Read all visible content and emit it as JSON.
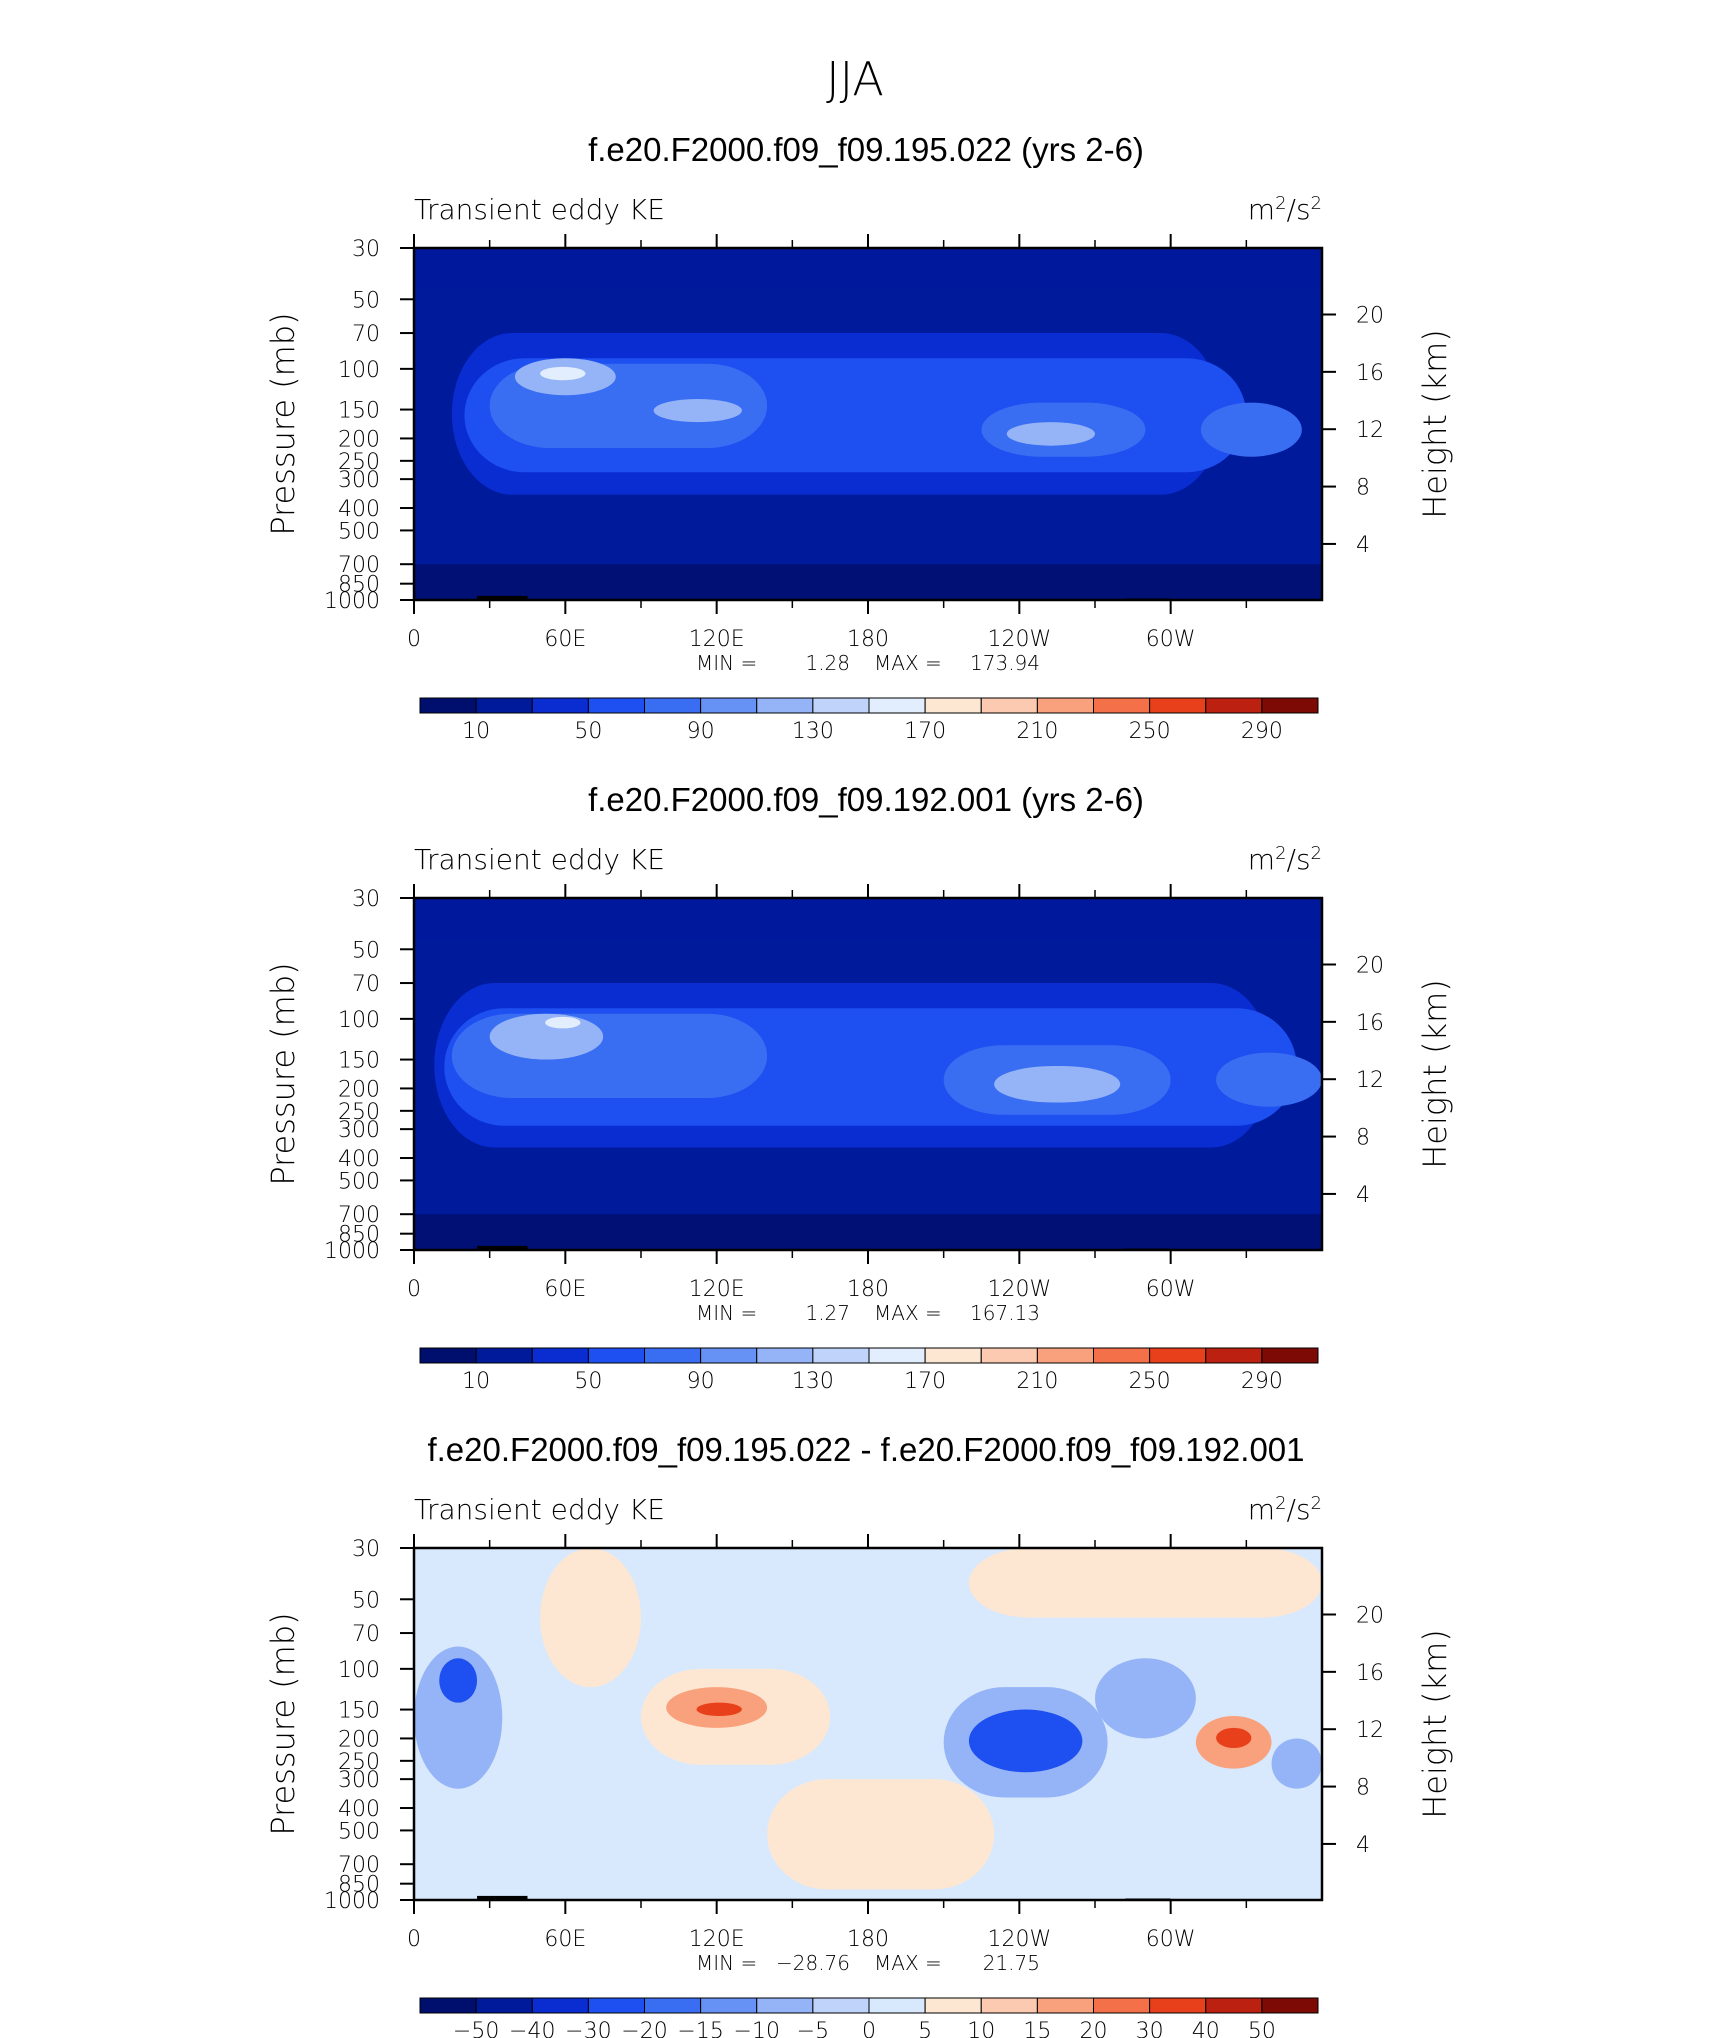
{
  "page": {
    "title": "JJA"
  },
  "colors": {
    "abs_palette": [
      "#000f6e",
      "#001a9c",
      "#0a2dd2",
      "#1e4ff0",
      "#3a6ef2",
      "#6792f5",
      "#95b4f7",
      "#c0d4fb",
      "#e2eefd",
      "#fde7d2",
      "#fccab0",
      "#f9a07c",
      "#f47048",
      "#e8401a",
      "#bb2010",
      "#7d0a05"
    ],
    "diff_palette": [
      "#000f6e",
      "#001a9c",
      "#0a2dd2",
      "#1e4ff0",
      "#3a6ef2",
      "#6792f5",
      "#95b4f7",
      "#c0d4fb",
      "#d8e8fd",
      "#fde7d2",
      "#fccab0",
      "#f9a07c",
      "#f47048",
      "#e8401a",
      "#bb2010",
      "#7d0a05"
    ],
    "topography": "#000000"
  },
  "chart_data": [
    {
      "type": "heatmap",
      "title": "f.e20.F2000.f09_f09.195.022 (yrs 2-6)",
      "left_string": "Transient eddy KE",
      "units_base": "m",
      "units_exp": "2",
      "units_sep": "/s",
      "units_exp2": "2",
      "ylabel": "Pressure (mb)",
      "ylabel_right": "Height (km)",
      "x_ticks": [
        "0",
        "60E",
        "120E",
        "180",
        "120W",
        "60W"
      ],
      "y_ticks": [
        "30",
        "50",
        "70",
        "100",
        "150",
        "200",
        "250",
        "300",
        "400",
        "500",
        "700",
        "850",
        "1000"
      ],
      "y_right_ticks": [
        "20",
        "16",
        "12",
        "8",
        "4"
      ],
      "ylim": [
        1000,
        30
      ],
      "min_label": "MIN =",
      "min_value": "1.28",
      "max_label": "MAX =",
      "max_value": "173.94",
      "colorbar_labels": [
        "10",
        "50",
        "90",
        "130",
        "170",
        "210",
        "250",
        "290"
      ],
      "bands": [
        {
          "x": [
            0,
            360
          ],
          "p": [
            30,
            1000
          ],
          "level": 1
        },
        {
          "x": [
            15,
            320
          ],
          "p": [
            70,
            350
          ],
          "level": 2
        },
        {
          "x": [
            20,
            330
          ],
          "p": [
            90,
            280
          ],
          "level": 3
        },
        {
          "x": [
            30,
            140
          ],
          "p": [
            95,
            220
          ],
          "level": 4
        },
        {
          "x": [
            225,
            290
          ],
          "p": [
            140,
            240
          ],
          "level": 4
        },
        {
          "x": [
            312,
            352
          ],
          "p": [
            140,
            240
          ],
          "level": 4
        },
        {
          "x": [
            40,
            80
          ],
          "p": [
            90,
            130
          ],
          "level": 6
        },
        {
          "x": [
            95,
            130
          ],
          "p": [
            135,
            170
          ],
          "level": 6
        },
        {
          "x": [
            235,
            270
          ],
          "p": [
            170,
            215
          ],
          "level": 6
        },
        {
          "x": [
            50,
            68
          ],
          "p": [
            98,
            112
          ],
          "level": 8
        }
      ]
    },
    {
      "type": "heatmap",
      "title": "f.e20.F2000.f09_f09.192.001 (yrs 2-6)",
      "left_string": "Transient eddy KE",
      "units_base": "m",
      "units_exp": "2",
      "units_sep": "/s",
      "units_exp2": "2",
      "ylabel": "Pressure (mb)",
      "ylabel_right": "Height (km)",
      "x_ticks": [
        "0",
        "60E",
        "120E",
        "180",
        "120W",
        "60W"
      ],
      "y_ticks": [
        "30",
        "50",
        "70",
        "100",
        "150",
        "200",
        "250",
        "300",
        "400",
        "500",
        "700",
        "850",
        "1000"
      ],
      "y_right_ticks": [
        "20",
        "16",
        "12",
        "8",
        "4"
      ],
      "ylim": [
        1000,
        30
      ],
      "min_label": "MIN =",
      "min_value": "1.27",
      "max_label": "MAX =",
      "max_value": "167.13",
      "colorbar_labels": [
        "10",
        "50",
        "90",
        "130",
        "170",
        "210",
        "250",
        "290"
      ],
      "bands": [
        {
          "x": [
            0,
            360
          ],
          "p": [
            30,
            1000
          ],
          "level": 1
        },
        {
          "x": [
            8,
            340
          ],
          "p": [
            70,
            360
          ],
          "level": 2
        },
        {
          "x": [
            12,
            350
          ],
          "p": [
            90,
            290
          ],
          "level": 3
        },
        {
          "x": [
            15,
            140
          ],
          "p": [
            95,
            220
          ],
          "level": 4
        },
        {
          "x": [
            210,
            300
          ],
          "p": [
            130,
            260
          ],
          "level": 4
        },
        {
          "x": [
            318,
            360
          ],
          "p": [
            140,
            240
          ],
          "level": 4
        },
        {
          "x": [
            30,
            75
          ],
          "p": [
            95,
            150
          ],
          "level": 6
        },
        {
          "x": [
            230,
            280
          ],
          "p": [
            160,
            230
          ],
          "level": 6
        },
        {
          "x": [
            52,
            66
          ],
          "p": [
            98,
            110
          ],
          "level": 8
        }
      ]
    },
    {
      "type": "heatmap",
      "title": "f.e20.F2000.f09_f09.195.022 - f.e20.F2000.f09_f09.192.001",
      "left_string": "Transient eddy KE",
      "units_base": "m",
      "units_exp": "2",
      "units_sep": "/s",
      "units_exp2": "2",
      "ylabel": "Pressure (mb)",
      "ylabel_right": "Height (km)",
      "x_ticks": [
        "0",
        "60E",
        "120E",
        "180",
        "120W",
        "60W"
      ],
      "y_ticks": [
        "30",
        "50",
        "70",
        "100",
        "150",
        "200",
        "250",
        "300",
        "400",
        "500",
        "700",
        "850",
        "1000"
      ],
      "y_right_ticks": [
        "20",
        "16",
        "12",
        "8",
        "4"
      ],
      "ylim": [
        1000,
        30
      ],
      "min_label": "MIN =",
      "min_value": "−28.76",
      "max_label": "MAX =",
      "max_value": "21.75",
      "colorbar_labels": [
        "−50",
        "−40",
        "−30",
        "−20",
        "−15",
        "−10",
        "−5",
        "0",
        "5",
        "10",
        "15",
        "20",
        "30",
        "40",
        "50"
      ],
      "bands": [
        {
          "x": [
            0,
            360
          ],
          "p": [
            30,
            1000
          ],
          "level": 8
        },
        {
          "x": [
            50,
            90
          ],
          "p": [
            30,
            120
          ],
          "level": 9
        },
        {
          "x": [
            90,
            165
          ],
          "p": [
            100,
            260
          ],
          "level": 9
        },
        {
          "x": [
            140,
            230
          ],
          "p": [
            300,
            900
          ],
          "level": 9
        },
        {
          "x": [
            220,
            360
          ],
          "p": [
            30,
            60
          ],
          "level": 9
        },
        {
          "x": [
            0,
            35
          ],
          "p": [
            80,
            330
          ],
          "level": 6
        },
        {
          "x": [
            210,
            275
          ],
          "p": [
            120,
            360
          ],
          "level": 6
        },
        {
          "x": [
            270,
            310
          ],
          "p": [
            90,
            200
          ],
          "level": 6
        },
        {
          "x": [
            340,
            360
          ],
          "p": [
            200,
            330
          ],
          "level": 6
        },
        {
          "x": [
            10,
            25
          ],
          "p": [
            90,
            140
          ],
          "level": 3
        },
        {
          "x": [
            220,
            265
          ],
          "p": [
            150,
            280
          ],
          "level": 3
        },
        {
          "x": [
            100,
            140
          ],
          "p": [
            120,
            180
          ],
          "level": 11
        },
        {
          "x": [
            310,
            340
          ],
          "p": [
            160,
            270
          ],
          "level": 11
        },
        {
          "x": [
            112,
            130
          ],
          "p": [
            140,
            160
          ],
          "level": 13
        },
        {
          "x": [
            318,
            332
          ],
          "p": [
            180,
            220
          ],
          "level": 13
        }
      ]
    }
  ]
}
